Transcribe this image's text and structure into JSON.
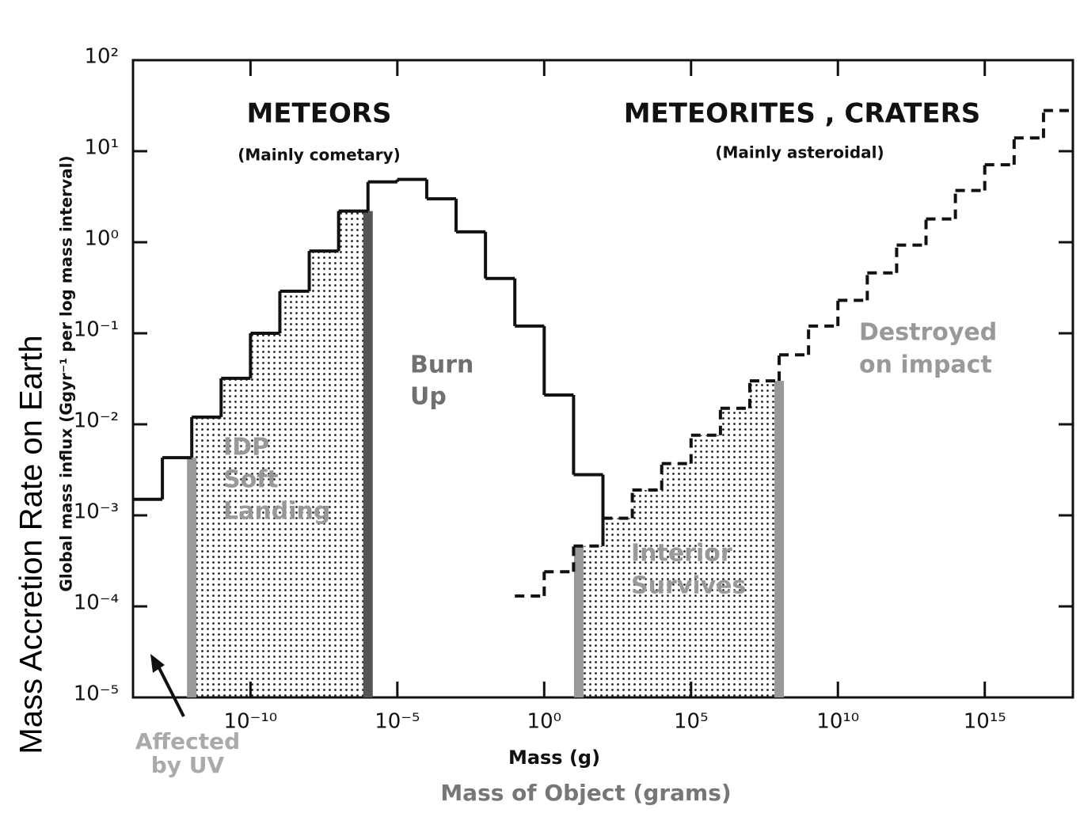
{
  "chart_data": {
    "type": "step",
    "xlabel": "Mass (g)",
    "ylabel": "Global mass influx (Ggyr⁻¹ per log mass interval)",
    "overlay_ylabel": "Mass Accretion Rate on Earth",
    "overlay_xlabel": "Mass of Object (grams)",
    "log_x": true,
    "log_y": true,
    "xlim": [
      1e-14,
      1e+18
    ],
    "ylim": [
      1e-05,
      100
    ],
    "xticks": [
      {
        "value": 1e-10,
        "label": "10⁻¹⁰"
      },
      {
        "value": 1e-05,
        "label": "10⁻⁵"
      },
      {
        "value": 1,
        "label": "10⁰"
      },
      {
        "value": 100000.0,
        "label": "10⁵"
      },
      {
        "value": 10000000000.0,
        "label": "10¹⁰"
      },
      {
        "value": 1000000000000000.0,
        "label": "10¹⁵"
      }
    ],
    "yticks": [
      {
        "value": 1e-05,
        "label": "10⁻⁵"
      },
      {
        "value": 0.0001,
        "label": "10⁻⁴"
      },
      {
        "value": 0.001,
        "label": "10⁻³"
      },
      {
        "value": 0.01,
        "label": "10⁻²"
      },
      {
        "value": 0.1,
        "label": "10⁻¹"
      },
      {
        "value": 1,
        "label": "10⁰"
      },
      {
        "value": 10,
        "label": "10¹"
      },
      {
        "value": 100,
        "label": "10²"
      }
    ],
    "series": [
      {
        "style": "solid",
        "color": "#111111",
        "bins": [
          1e-14,
          1e-13,
          1e-12,
          1e-11,
          1e-10,
          1e-09,
          1e-08,
          1e-07,
          1e-06,
          1e-05,
          0.0001,
          0.001,
          0.01,
          0.1,
          1,
          10,
          100
        ],
        "values": [
          0.0015,
          0.0043,
          0.012,
          0.032,
          0.1,
          0.29,
          0.8,
          2.2,
          4.6,
          4.9,
          3,
          1.3,
          0.4,
          0.12,
          0.021,
          0.0028
        ]
      },
      {
        "style": "dashed",
        "color": "#111111",
        "bins": [
          0.1,
          1,
          10,
          100,
          1000,
          10000.0,
          100000.0,
          1000000.0,
          10000000.0,
          100000000.0,
          1000000000.0,
          10000000000.0,
          100000000000.0,
          1000000000000.0,
          10000000000000.0,
          100000000000000.0,
          1000000000000000.0,
          1e+16,
          1e+17,
          1e+18
        ],
        "values": [
          0.00013,
          0.00024,
          0.00046,
          0.00093,
          0.0019,
          0.0037,
          0.0076,
          0.015,
          0.03,
          0.058,
          0.12,
          0.23,
          0.46,
          0.93,
          1.8,
          3.7,
          7.1,
          14,
          28
        ]
      }
    ],
    "boundaries": [
      {
        "x": 1e-12,
        "color": "#999999"
      },
      {
        "x": 1e-06,
        "color": "#555555"
      },
      {
        "x": 15,
        "color": "#999999"
      },
      {
        "x": 100000000.0,
        "color": "#999999"
      }
    ],
    "annotations": [
      {
        "lines": [
          "METEORS"
        ]
      },
      {
        "lines": [
          "(Mainly cometary)"
        ]
      },
      {
        "lines": [
          "METEORITES , CRATERS"
        ]
      },
      {
        "lines": [
          "(Mainly asteroidal)"
        ]
      },
      {
        "lines": [
          "Burn",
          "Up"
        ]
      },
      {
        "lines": [
          "IDP",
          "Soft",
          "Landing"
        ]
      },
      {
        "lines": [
          "Interior",
          "Survives"
        ]
      },
      {
        "lines": [
          "Destroyed",
          "on impact"
        ]
      },
      {
        "lines": [
          "Affected",
          "by UV"
        ]
      }
    ]
  }
}
